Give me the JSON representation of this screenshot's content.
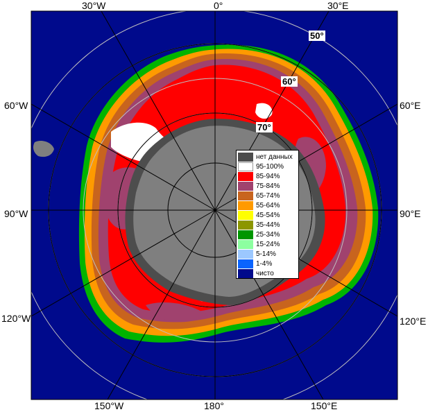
{
  "longitude_labels": {
    "top": [
      "30°W",
      "0°",
      "30°E"
    ],
    "left": [
      "60°W",
      "90°W",
      "120°W"
    ],
    "right": [
      "60°E",
      "90°E",
      "120°E"
    ],
    "bottom": [
      "150°W",
      "180°",
      "150°E"
    ]
  },
  "latitude_labels": [
    "50°",
    "60°",
    "70°"
  ],
  "legend": {
    "items": [
      {
        "label": "нет данных",
        "color": "#4d4d4d"
      },
      {
        "label": "95-100%",
        "color": "#ffffff"
      },
      {
        "label": "85-94%",
        "color": "#ff0000"
      },
      {
        "label": "75-84%",
        "color": "#a0426e"
      },
      {
        "label": "65-74%",
        "color": "#c8641e"
      },
      {
        "label": "55-64%",
        "color": "#ff9a00"
      },
      {
        "label": "45-54%",
        "color": "#ffff00"
      },
      {
        "label": "35-44%",
        "color": "#8c9600"
      },
      {
        "label": "25-34%",
        "color": "#009600"
      },
      {
        "label": "15-24%",
        "color": "#8cffa0"
      },
      {
        "label": "5-14%",
        "color": "#9cc8ff"
      },
      {
        "label": "1-4%",
        "color": "#0a64ff"
      },
      {
        "label": "чисто",
        "color": "#000a8c"
      }
    ]
  },
  "colors": {
    "ocean": "#000a8c",
    "land": "#7f7f7f",
    "no_data": "#4d4d4d",
    "grid": "#000000"
  }
}
